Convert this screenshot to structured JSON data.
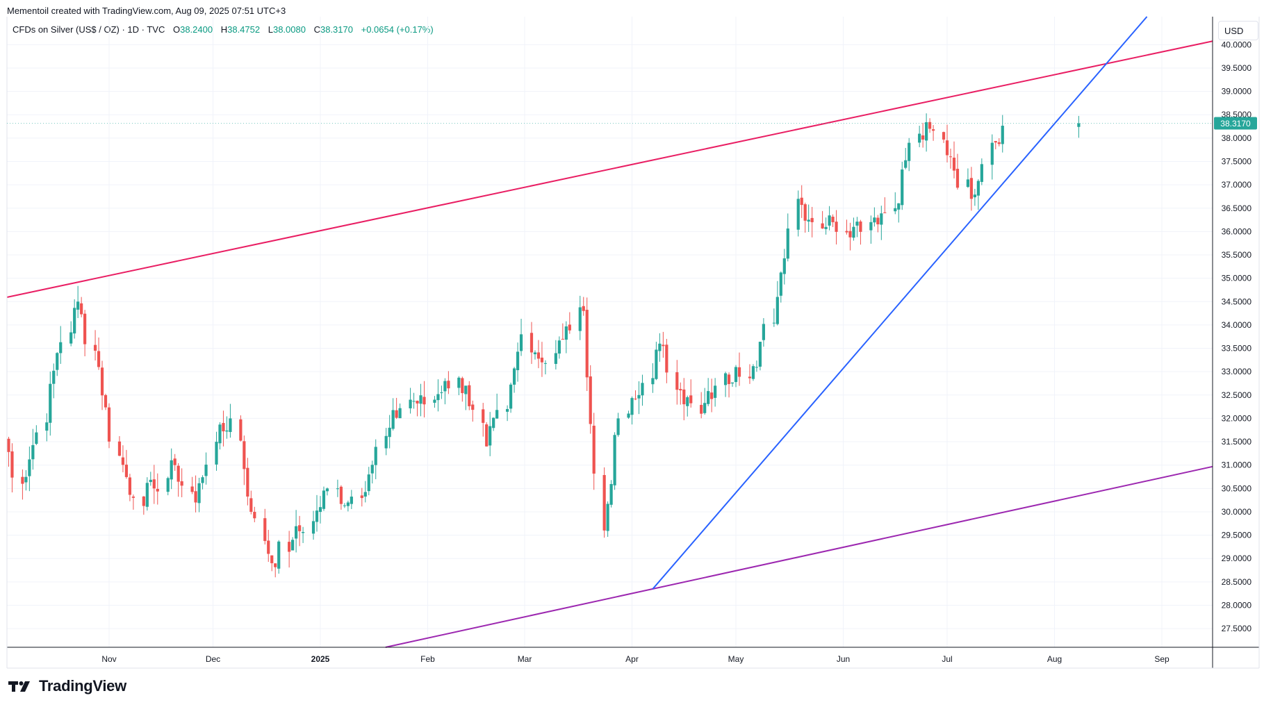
{
  "header": {
    "created_by": "Mementoil created with TradingView.com, Aug 09, 2025 07:51 UTC+3"
  },
  "legend": {
    "symbol": "CFDs on Silver (US$ / OZ) · 1D · TVC",
    "o_label": "O",
    "o_value": "38.2400",
    "h_label": "H",
    "h_value": "38.4752",
    "l_label": "L",
    "l_value": "38.0080",
    "c_label": "C",
    "c_value": "38.3170",
    "change": "+0.0654 (+0.17%)"
  },
  "currency_button": "USD",
  "price_tag": "38.3170",
  "brand": "TradingView",
  "colors": {
    "up": "#26a69a",
    "down": "#ef5350",
    "upper_channel": "#e91e63",
    "lower_channel": "#9c27b0",
    "trendline": "#2962ff",
    "grid": "#f0f3fa"
  },
  "chart_data": {
    "type": "candlestick",
    "x_axis": {
      "ticks": [
        "Nov",
        "Dec",
        "2025",
        "Feb",
        "Mar",
        "Apr",
        "May",
        "Jun",
        "Jul",
        "Aug",
        "Sep"
      ],
      "tick_dates": [
        "2024-11-01",
        "2024-12-01",
        "2025-01-01",
        "2025-02-01",
        "2025-03-01",
        "2025-04-01",
        "2025-05-01",
        "2025-06-01",
        "2025-07-01",
        "2025-08-01",
        "2025-09-01"
      ]
    },
    "y_axis": {
      "ticks": [
        "40.0000",
        "39.5000",
        "39.0000",
        "38.5000",
        "38.0000",
        "37.5000",
        "37.0000",
        "36.5000",
        "36.0000",
        "35.5000",
        "35.0000",
        "34.5000",
        "34.0000",
        "33.5000",
        "33.0000",
        "32.5000",
        "32.0000",
        "31.5000",
        "31.0000",
        "30.5000",
        "30.0000",
        "29.5000",
        "29.0000",
        "28.5000",
        "28.0000",
        "27.5000"
      ],
      "range": [
        27.1,
        40.6
      ],
      "currency": "USD"
    },
    "closes_every_4_trading_days": [
      31.9,
      30.6,
      31.7,
      33.4,
      34.5,
      33.1,
      31.2,
      30.3,
      30.5,
      31.0,
      30.2,
      31.5,
      32.0,
      30.0,
      28.9,
      29.4,
      29.8,
      30.5,
      30.2,
      30.8,
      31.8,
      32.4,
      32.3,
      32.8,
      32.7,
      31.4,
      32.2,
      33.8,
      33.2,
      33.7,
      34.3,
      29.6,
      32.0,
      32.5,
      33.6,
      32.6,
      32.1,
      32.7,
      33.1,
      33.1,
      34.6,
      36.7,
      36.2,
      36.2,
      36.1,
      36.3,
      36.5,
      37.9,
      38.2,
      37.6,
      36.7,
      37.9,
      38.32
    ],
    "last": {
      "date": "2025-08-08",
      "open": 38.24,
      "high": 38.4752,
      "low": 38.008,
      "close": 38.317,
      "change": 0.0654,
      "change_pct": 0.17
    },
    "trendlines": [
      {
        "color": "upper-channel-red",
        "from": {
          "date": "2024-10-22",
          "price": 34.9
        },
        "to": {
          "date": "2025-07-22",
          "price": 39.2
        }
      },
      {
        "color": "lower-channel-purple",
        "from": {
          "date": "2025-01-26",
          "price": 27.2
        },
        "to": {
          "date": "2025-04-07",
          "price": 28.35
        }
      },
      {
        "color": "rising-support-blue",
        "from": {
          "date": "2025-04-07",
          "price": 28.35
        },
        "to": {
          "date": "2025-05-30",
          "price": 32.9
        }
      }
    ]
  }
}
